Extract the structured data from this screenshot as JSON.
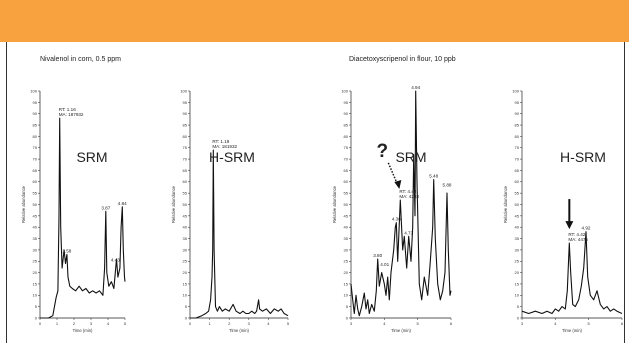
{
  "colors": {
    "header_band": "#f7a13f",
    "trace": "#111111",
    "frame": "#333333"
  },
  "sections": [
    {
      "title": "Nivalenol in corn, 0.5 ppm"
    },
    {
      "title": "Diacetoxyscripenol in flour, 10 ppb"
    }
  ],
  "chart_data": [
    {
      "type": "line",
      "mode_label": "SRM",
      "xlabel": "Time (min)",
      "ylabel": "Relative abundance",
      "xlim": [
        0,
        5
      ],
      "ylim": [
        0,
        100
      ],
      "x_ticks": [
        0,
        1,
        2,
        3,
        4,
        5
      ],
      "y_ticks": [
        0,
        5,
        10,
        15,
        20,
        25,
        30,
        35,
        40,
        45,
        50,
        55,
        60,
        65,
        70,
        75,
        80,
        85,
        90,
        95,
        100
      ],
      "series": [
        {
          "points": [
            [
              0,
              0
            ],
            [
              0.25,
              0
            ],
            [
              0.5,
              0
            ],
            [
              0.75,
              1
            ],
            [
              0.95,
              9
            ],
            [
              1.05,
              12
            ],
            [
              1.12,
              45
            ],
            [
              1.16,
              88
            ],
            [
              1.22,
              40
            ],
            [
              1.3,
              22
            ],
            [
              1.42,
              30
            ],
            [
              1.5,
              24
            ],
            [
              1.58,
              28
            ],
            [
              1.65,
              18
            ],
            [
              1.75,
              14
            ],
            [
              1.9,
              13
            ],
            [
              2.1,
              12
            ],
            [
              2.3,
              14
            ],
            [
              2.5,
              12
            ],
            [
              2.7,
              13
            ],
            [
              2.9,
              11
            ],
            [
              3.1,
              12
            ],
            [
              3.3,
              11
            ],
            [
              3.5,
              12
            ],
            [
              3.7,
              10
            ],
            [
              3.8,
              22
            ],
            [
              3.87,
              47
            ],
            [
              3.93,
              20
            ],
            [
              4.05,
              14
            ],
            [
              4.2,
              16
            ],
            [
              4.35,
              13
            ],
            [
              4.43,
              20
            ],
            [
              4.5,
              26
            ],
            [
              4.58,
              18
            ],
            [
              4.7,
              22
            ],
            [
              4.77,
              40
            ],
            [
              4.84,
              49
            ],
            [
              4.9,
              30
            ],
            [
              4.97,
              18
            ],
            [
              5,
              16
            ]
          ]
        }
      ],
      "annotations": [
        {
          "x": 1.16,
          "y": 88,
          "lines": [
            "RT: 1.16",
            "MA: 187932"
          ]
        },
        {
          "x": 1.58,
          "y": 28,
          "lines": [
            "1.58"
          ]
        },
        {
          "x": 3.87,
          "y": 47,
          "lines": [
            "3.87"
          ]
        },
        {
          "x": 4.43,
          "y": 24,
          "lines": [
            "4.43"
          ]
        },
        {
          "x": 4.84,
          "y": 49,
          "lines": [
            "4.84"
          ]
        }
      ]
    },
    {
      "type": "line",
      "mode_label": "H-SRM",
      "xlabel": "Time (min)",
      "ylabel": "Relative abundance",
      "xlim": [
        0,
        5
      ],
      "ylim": [
        0,
        100
      ],
      "x_ticks": [
        0,
        1,
        2,
        3,
        4,
        5
      ],
      "y_ticks": [
        0,
        5,
        10,
        15,
        20,
        25,
        30,
        35,
        40,
        45,
        50,
        55,
        60,
        65,
        70,
        75,
        80,
        85,
        90,
        95,
        100
      ],
      "series": [
        {
          "points": [
            [
              0,
              0
            ],
            [
              0.3,
              0
            ],
            [
              0.6,
              1
            ],
            [
              0.8,
              2
            ],
            [
              0.95,
              3
            ],
            [
              1.05,
              8
            ],
            [
              1.12,
              18
            ],
            [
              1.16,
              30
            ],
            [
              1.19,
              74
            ],
            [
              1.23,
              30
            ],
            [
              1.3,
              5
            ],
            [
              1.4,
              3
            ],
            [
              1.5,
              5
            ],
            [
              1.65,
              3
            ],
            [
              1.8,
              4
            ],
            [
              2.0,
              3
            ],
            [
              2.2,
              6
            ],
            [
              2.35,
              3
            ],
            [
              2.55,
              2
            ],
            [
              2.7,
              3
            ],
            [
              2.85,
              2
            ],
            [
              3.0,
              2
            ],
            [
              3.15,
              3
            ],
            [
              3.3,
              2
            ],
            [
              3.4,
              3
            ],
            [
              3.5,
              8
            ],
            [
              3.55,
              4
            ],
            [
              3.7,
              3
            ],
            [
              3.9,
              4
            ],
            [
              4.1,
              2
            ],
            [
              4.3,
              4
            ],
            [
              4.5,
              3
            ],
            [
              4.65,
              4
            ],
            [
              4.8,
              2
            ],
            [
              5,
              1
            ]
          ]
        }
      ],
      "annotations": [
        {
          "x": 1.19,
          "y": 74,
          "lines": [
            "RT: 1.19",
            "MA: 181932"
          ]
        }
      ]
    },
    {
      "type": "line",
      "mode_label": "SRM",
      "xlabel": "Time (min)",
      "ylabel": "Relative abundance",
      "xlim": [
        3,
        6
      ],
      "ylim": [
        0,
        100
      ],
      "x_ticks": [
        3,
        4,
        5,
        6
      ],
      "y_ticks": [
        0,
        5,
        10,
        15,
        20,
        25,
        30,
        35,
        40,
        45,
        50,
        55,
        60,
        65,
        70,
        75,
        80,
        85,
        90,
        95,
        100
      ],
      "series": [
        {
          "points": [
            [
              3,
              15
            ],
            [
              3.05,
              8
            ],
            [
              3.1,
              2
            ],
            [
              3.15,
              10
            ],
            [
              3.2,
              4
            ],
            [
              3.25,
              1
            ],
            [
              3.32,
              5
            ],
            [
              3.4,
              11
            ],
            [
              3.45,
              4
            ],
            [
              3.5,
              8
            ],
            [
              3.55,
              2
            ],
            [
              3.62,
              6
            ],
            [
              3.7,
              3
            ],
            [
              3.76,
              12
            ],
            [
              3.8,
              26
            ],
            [
              3.85,
              14
            ],
            [
              3.92,
              20
            ],
            [
              4.0,
              15
            ],
            [
              4.05,
              10
            ],
            [
              4.1,
              18
            ],
            [
              4.15,
              8
            ],
            [
              4.2,
              20
            ],
            [
              4.28,
              30
            ],
            [
              4.33,
              40
            ],
            [
              4.36,
              42
            ],
            [
              4.4,
              25
            ],
            [
              4.48,
              52
            ],
            [
              4.55,
              30
            ],
            [
              4.6,
              36
            ],
            [
              4.67,
              22
            ],
            [
              4.73,
              36
            ],
            [
              4.8,
              25
            ],
            [
              4.85,
              40
            ],
            [
              4.88,
              72
            ],
            [
              4.92,
              45
            ],
            [
              4.94,
              100
            ],
            [
              4.98,
              60
            ],
            [
              5.05,
              15
            ],
            [
              5.12,
              8
            ],
            [
              5.2,
              18
            ],
            [
              5.3,
              10
            ],
            [
              5.38,
              25
            ],
            [
              5.45,
              40
            ],
            [
              5.48,
              61
            ],
            [
              5.53,
              35
            ],
            [
              5.6,
              15
            ],
            [
              5.68,
              8
            ],
            [
              5.75,
              12
            ],
            [
              5.82,
              20
            ],
            [
              5.88,
              55
            ],
            [
              5.92,
              30
            ],
            [
              5.97,
              10
            ],
            [
              6,
              12
            ]
          ]
        }
      ],
      "annotations": [
        {
          "x": 3.8,
          "y": 26,
          "lines": [
            "3.80"
          ]
        },
        {
          "x": 4.01,
          "y": 22,
          "lines": [
            "4.01"
          ]
        },
        {
          "x": 4.36,
          "y": 42,
          "lines": [
            "4.36"
          ]
        },
        {
          "x": 4.48,
          "y": 52,
          "lines": [
            "RT: 4.48",
            "MA: 4233"
          ]
        },
        {
          "x": 4.73,
          "y": 36,
          "lines": [
            "4.73"
          ]
        },
        {
          "x": 4.94,
          "y": 100,
          "lines": [
            "4.94"
          ]
        },
        {
          "x": 5.48,
          "y": 61,
          "lines": [
            "5.48"
          ]
        },
        {
          "x": 5.88,
          "y": 57,
          "lines": [
            "5.88"
          ]
        }
      ],
      "marker": {
        "symbol": "?",
        "arrow": "dotted",
        "x": 4.48,
        "y": 52
      }
    },
    {
      "type": "line",
      "mode_label": "H-SRM",
      "xlabel": "Time (min)",
      "ylabel": "Relative abundance",
      "xlim": [
        3,
        6
      ],
      "ylim": [
        0,
        100
      ],
      "x_ticks": [
        3,
        4,
        5,
        6
      ],
      "y_ticks": [
        0,
        5,
        10,
        15,
        20,
        25,
        30,
        35,
        40,
        45,
        50,
        55,
        60,
        65,
        70,
        75,
        80,
        85,
        90,
        95,
        100
      ],
      "series": [
        {
          "points": [
            [
              3,
              3
            ],
            [
              3.2,
              2
            ],
            [
              3.4,
              3
            ],
            [
              3.6,
              2
            ],
            [
              3.75,
              3
            ],
            [
              3.9,
              2
            ],
            [
              4.0,
              4
            ],
            [
              4.1,
              3
            ],
            [
              4.2,
              5
            ],
            [
              4.3,
              4
            ],
            [
              4.36,
              12
            ],
            [
              4.42,
              33
            ],
            [
              4.46,
              20
            ],
            [
              4.52,
              6
            ],
            [
              4.6,
              5
            ],
            [
              4.7,
              8
            ],
            [
              4.78,
              14
            ],
            [
              4.85,
              22
            ],
            [
              4.92,
              38
            ],
            [
              4.97,
              18
            ],
            [
              5.05,
              10
            ],
            [
              5.15,
              8
            ],
            [
              5.25,
              12
            ],
            [
              5.35,
              6
            ],
            [
              5.45,
              4
            ],
            [
              5.55,
              5
            ],
            [
              5.65,
              3
            ],
            [
              5.75,
              4
            ],
            [
              5.85,
              3
            ],
            [
              6,
              2
            ]
          ]
        }
      ],
      "annotations": [
        {
          "x": 4.42,
          "y": 33,
          "lines": [
            "RT: 4.42",
            "MA: 4475"
          ]
        },
        {
          "x": 4.92,
          "y": 38,
          "lines": [
            "4.92"
          ]
        }
      ],
      "marker": {
        "arrow": "solid",
        "x": 4.42,
        "y": 33
      }
    }
  ]
}
